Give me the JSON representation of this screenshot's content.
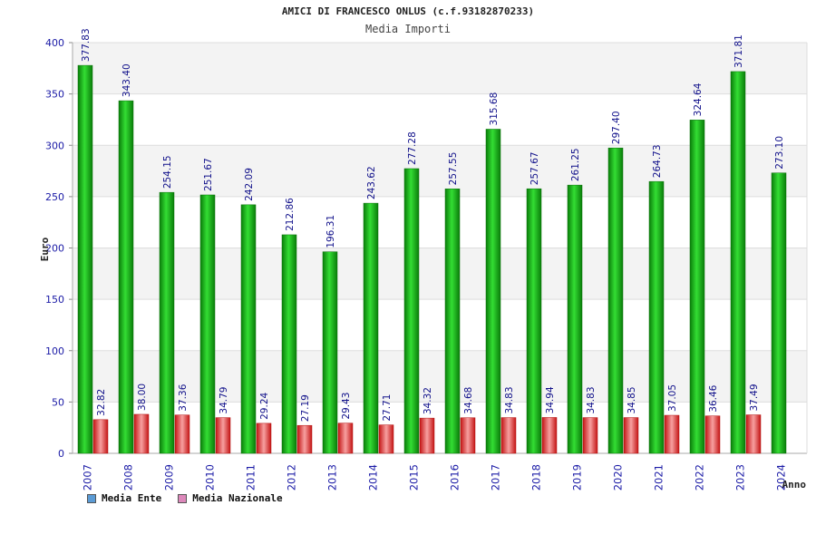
{
  "chart_data": {
    "type": "bar",
    "title": "AMICI DI FRANCESCO ONLUS (c.f.93182870233)",
    "subtitle": "Media Importi",
    "xlabel": "Anno",
    "ylabel": "Euro",
    "ylim": [
      0,
      400
    ],
    "yticks": [
      0,
      50,
      100,
      150,
      200,
      250,
      300,
      350,
      400
    ],
    "grid": true,
    "legend_position": "bottom-left",
    "categories": [
      "2007",
      "2008",
      "2009",
      "2010",
      "2011",
      "2012",
      "2013",
      "2014",
      "2015",
      "2016",
      "2017",
      "2018",
      "2019",
      "2020",
      "2021",
      "2022",
      "2023",
      "2024"
    ],
    "series": [
      {
        "name": "Media Ente",
        "color": "#11aa11",
        "legend_color": "#5b9bd5",
        "values": [
          377.83,
          343.4,
          254.15,
          251.67,
          242.09,
          212.86,
          196.31,
          243.62,
          277.28,
          257.55,
          315.68,
          257.67,
          261.25,
          297.4,
          264.73,
          324.64,
          371.81,
          273.1
        ],
        "labels": [
          "377.83",
          "343.40",
          "254.15",
          "251.67",
          "242.09",
          "212.86",
          "196.31",
          "243.62",
          "277.28",
          "257.55",
          "315.68",
          "257.67",
          "261.25",
          "297.40",
          "264.73",
          "324.64",
          "371.81",
          "273.10"
        ]
      },
      {
        "name": "Media Nazionale",
        "color": "#dd2222",
        "legend_color": "#dd88bb",
        "values": [
          32.82,
          38.0,
          37.36,
          34.79,
          29.24,
          27.19,
          29.43,
          27.71,
          34.32,
          34.68,
          34.83,
          34.94,
          34.83,
          34.85,
          37.05,
          36.46,
          37.49,
          null
        ],
        "labels": [
          "32.82",
          "38.00",
          "37.36",
          "34.79",
          "29.24",
          "27.19",
          "29.43",
          "27.71",
          "34.32",
          "34.68",
          "34.83",
          "34.94",
          "34.83",
          "34.85",
          "37.05",
          "36.46",
          "37.49",
          ""
        ]
      }
    ]
  }
}
